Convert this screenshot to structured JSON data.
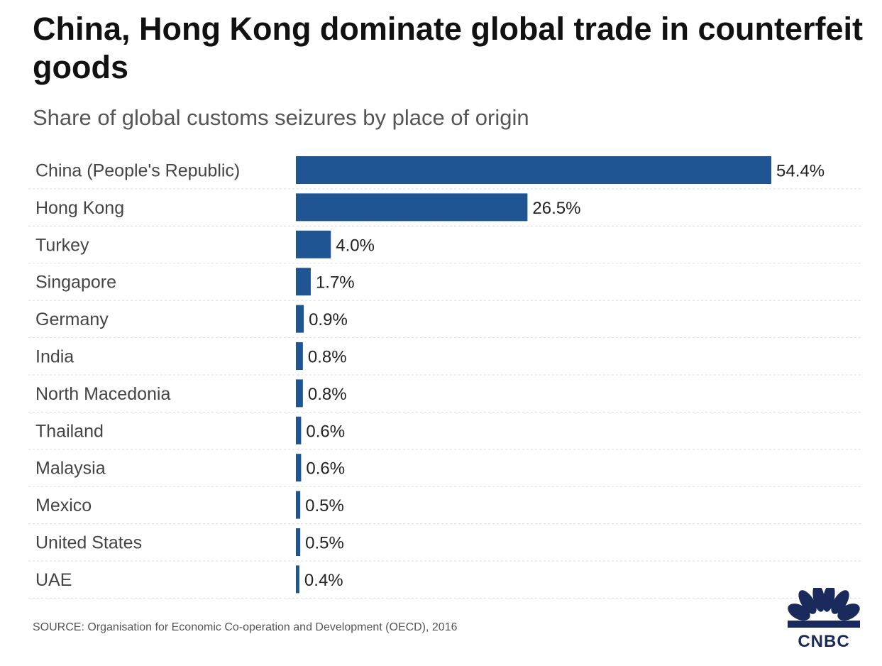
{
  "chart_data": {
    "type": "bar",
    "orientation": "horizontal",
    "title": "China, Hong Kong dominate global trade in counterfeit goods",
    "subtitle": "Share of global customs seizures by place of origin",
    "categories": [
      "China (People's Republic)",
      "Hong Kong",
      "Turkey",
      "Singapore",
      "Germany",
      "India",
      "North Macedonia",
      "Thailand",
      "Malaysia",
      "Mexico",
      "United States",
      "UAE"
    ],
    "values": [
      54.4,
      26.5,
      4.0,
      1.7,
      0.9,
      0.8,
      0.8,
      0.6,
      0.6,
      0.5,
      0.5,
      0.4
    ],
    "value_labels": [
      "54.4%",
      "26.5%",
      "4.0%",
      "1.7%",
      "0.9%",
      "0.8%",
      "0.8%",
      "0.6%",
      "0.6%",
      "0.5%",
      "0.5%",
      "0.4%"
    ],
    "unit": "%",
    "xlim": [
      0,
      54.4
    ],
    "bar_color": "#1f5593",
    "gridline_color": "#dddddd"
  },
  "source": "SOURCE: Organisation for Economic Co-operation and Development (OECD), 2016",
  "logo": {
    "text": "CNBC",
    "icon": "peacock-icon",
    "color": "#1a2a5c"
  }
}
